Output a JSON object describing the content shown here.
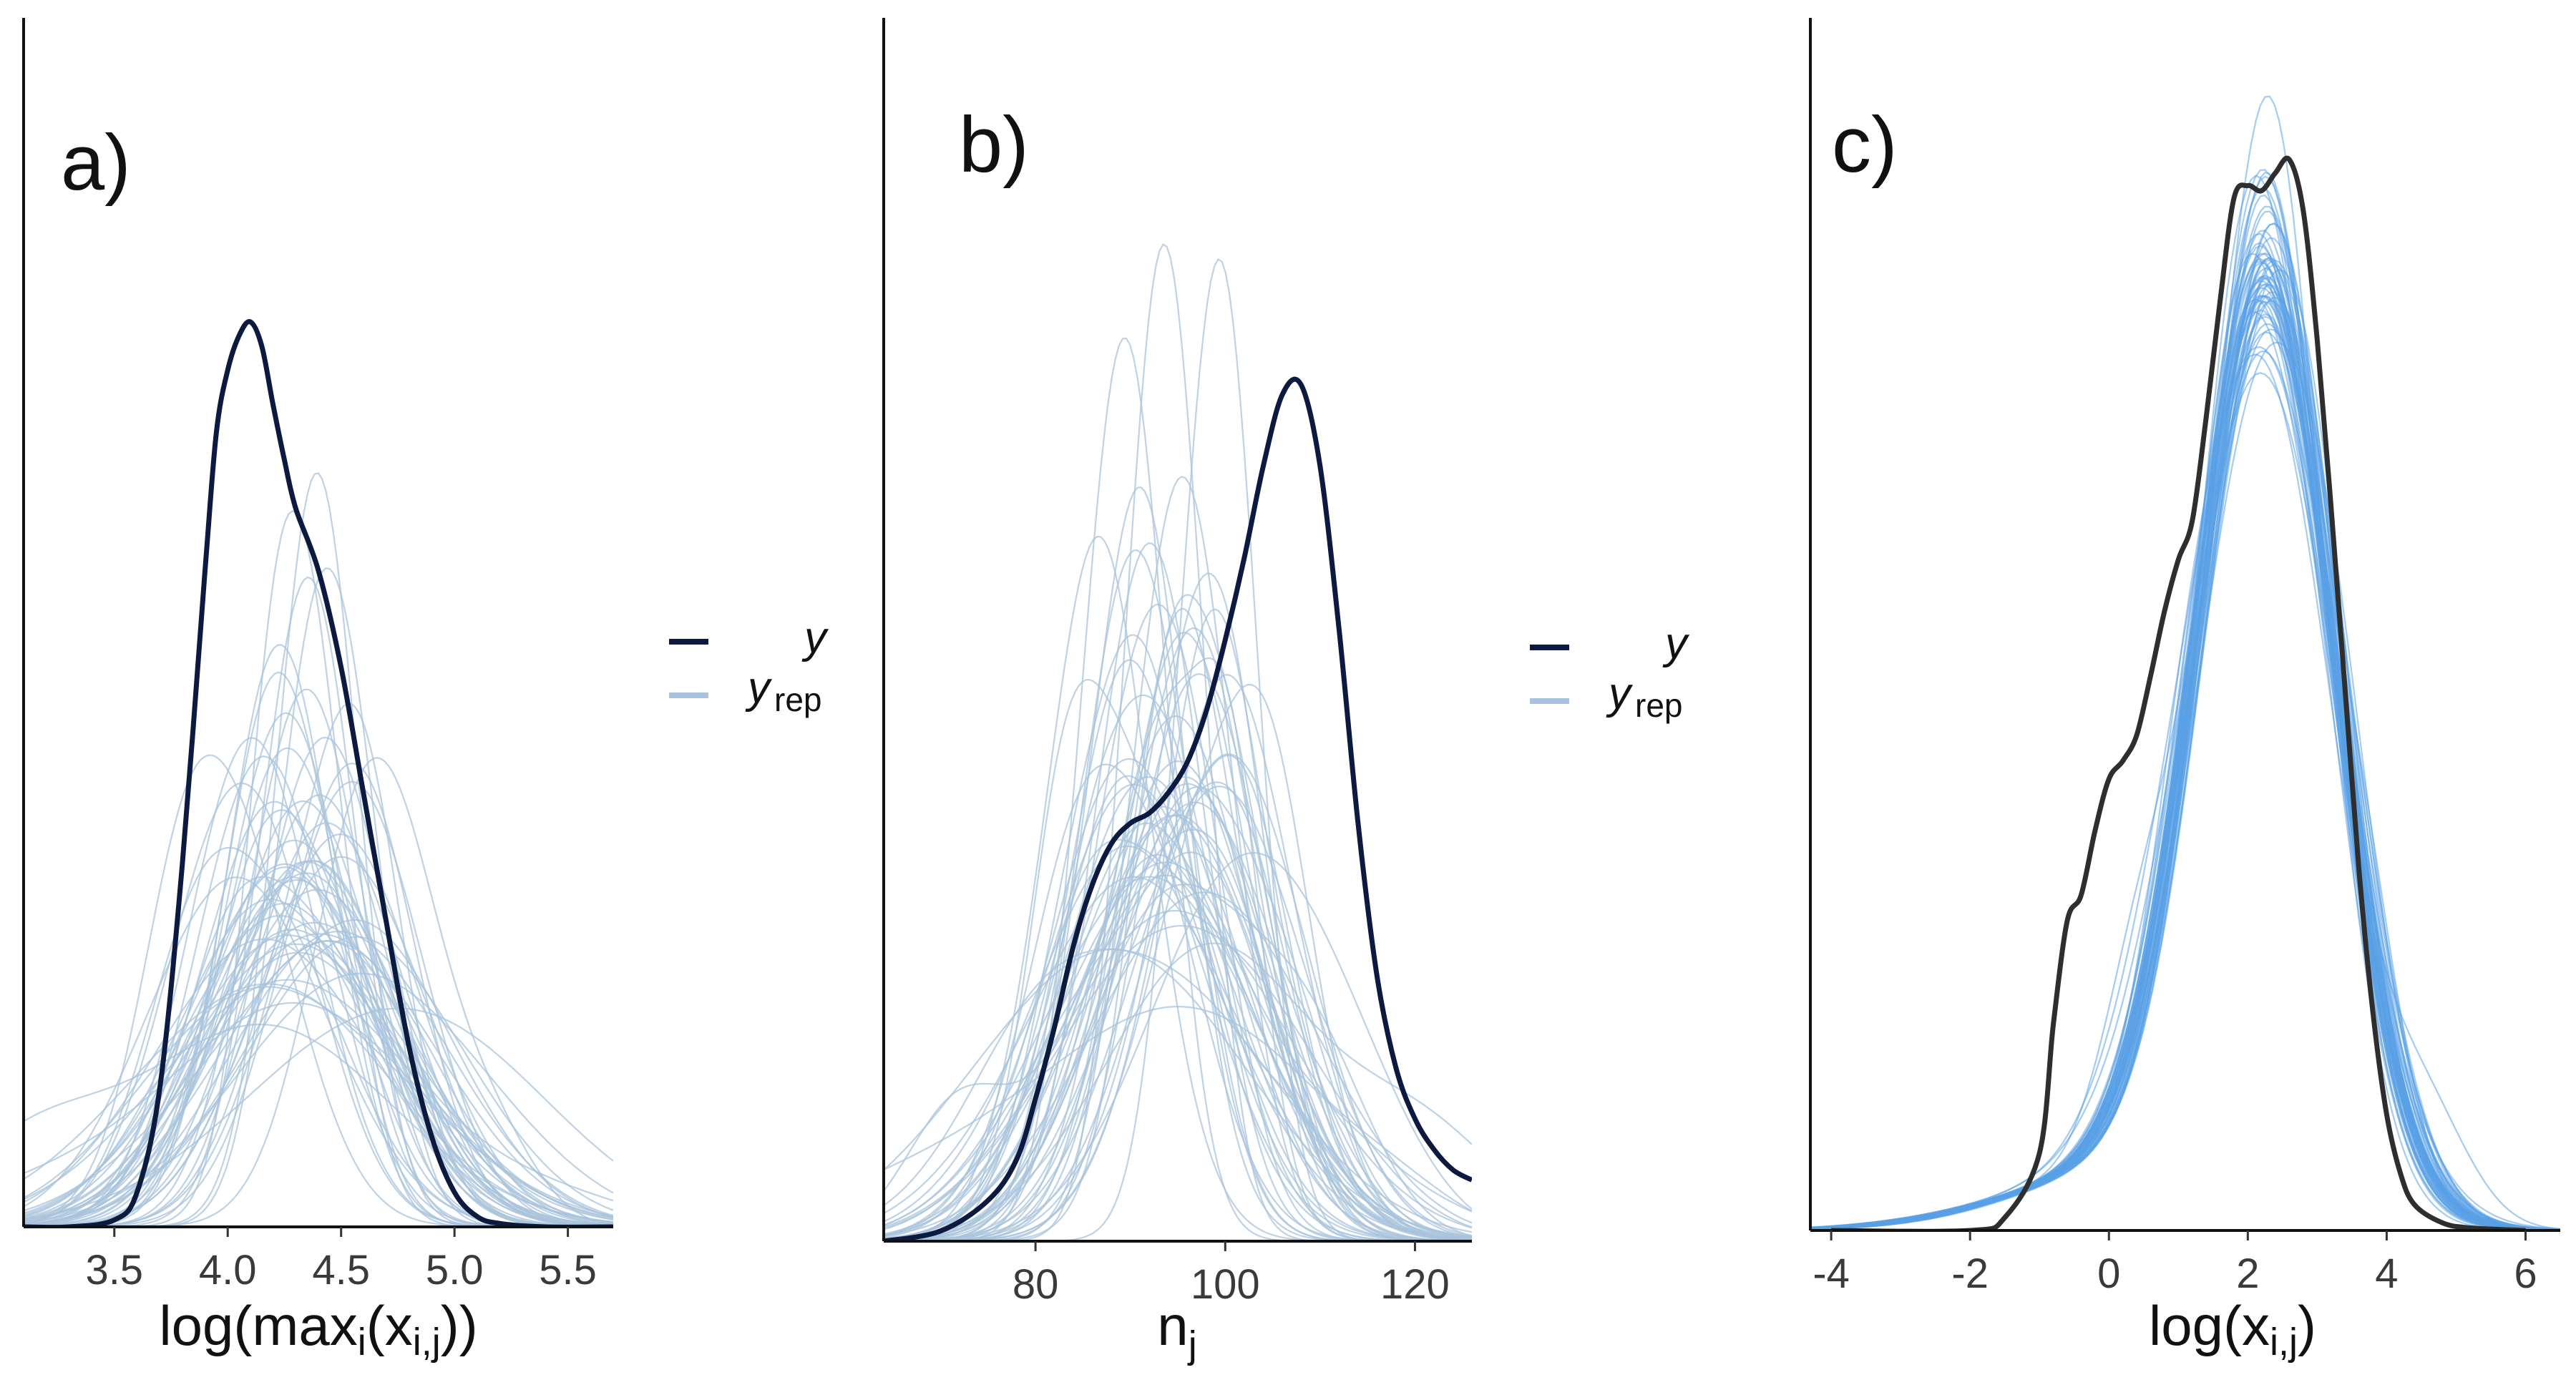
{
  "chart_data": [
    {
      "type": "line",
      "panel_label": "a)",
      "title": "",
      "xlabel_main": "log(max",
      "xlabel_sub": "i",
      "xlabel_mid": "(x",
      "xlabel_sub2": "i,j",
      "xlabel_end": "))",
      "ylabel": "",
      "xlim": [
        3.1,
        5.7
      ],
      "ylim": [
        0,
        3.5
      ],
      "ticks": [
        {
          "value": 3.5,
          "label": "3.5"
        },
        {
          "value": 4.0,
          "label": "4.0"
        },
        {
          "value": 4.5,
          "label": "4.5"
        },
        {
          "value": 5.0,
          "label": "5.0"
        },
        {
          "value": 5.5,
          "label": "5.5"
        }
      ],
      "observed": {
        "name": "y",
        "color": "#0b1a3e",
        "x": [
          3.1,
          3.3,
          3.5,
          3.6,
          3.7,
          3.8,
          3.9,
          3.95,
          4.0,
          4.05,
          4.1,
          4.15,
          4.2,
          4.25,
          4.3,
          4.4,
          4.5,
          4.6,
          4.7,
          4.8,
          4.9,
          5.0,
          5.1,
          5.2,
          5.4,
          5.7
        ],
        "y": [
          0.0,
          0.0,
          0.02,
          0.1,
          0.4,
          1.05,
          1.9,
          2.3,
          2.48,
          2.58,
          2.62,
          2.55,
          2.38,
          2.22,
          2.08,
          1.9,
          1.62,
          1.25,
          0.88,
          0.52,
          0.26,
          0.1,
          0.03,
          0.01,
          0.0,
          0.0
        ]
      },
      "replicated": {
        "name": "yrep",
        "color": "#a8c3db",
        "count": 60,
        "mean_center": 4.35,
        "center_sd": 0.14,
        "mean_sd": 0.38,
        "sd_spread": 0.12,
        "seed": 11
      },
      "legend": "right"
    },
    {
      "type": "line",
      "panel_label": "b)",
      "title": "",
      "xlabel_main": "n",
      "xlabel_sub": "j",
      "ylabel": "",
      "xlim": [
        64,
        126
      ],
      "ylim": [
        0,
        0.12
      ],
      "ticks": [
        {
          "value": 80,
          "label": "80"
        },
        {
          "value": 100,
          "label": "100"
        },
        {
          "value": 120,
          "label": "120"
        }
      ],
      "observed": {
        "name": "y",
        "color": "#0b1a3e",
        "x": [
          64,
          70,
          75,
          78,
          80,
          82,
          84,
          86,
          88,
          90,
          92,
          94,
          96,
          98,
          100,
          102,
          104,
          106,
          108,
          110,
          112,
          114,
          116,
          118,
          120,
          122,
          124,
          126
        ],
        "y": [
          0.0,
          0.001,
          0.004,
          0.008,
          0.014,
          0.021,
          0.029,
          0.035,
          0.039,
          0.041,
          0.042,
          0.044,
          0.047,
          0.052,
          0.059,
          0.067,
          0.076,
          0.083,
          0.084,
          0.076,
          0.06,
          0.041,
          0.026,
          0.017,
          0.012,
          0.009,
          0.007,
          0.006
        ]
      },
      "replicated": {
        "name": "yrep",
        "color": "#a8c3db",
        "count": 60,
        "mean_center": 94,
        "center_sd": 3.5,
        "mean_sd": 8.5,
        "sd_spread": 2.5,
        "seed": 23
      },
      "legend": "right"
    },
    {
      "type": "line",
      "panel_label": "c)",
      "title": "",
      "xlabel_main": "log(x",
      "xlabel_sub": "i,j",
      "xlabel_end": ")",
      "ylabel": "",
      "xlim": [
        -4.3,
        6.5
      ],
      "ylim": [
        0,
        0.47
      ],
      "ticks": [
        {
          "value": -4,
          "label": "-4"
        },
        {
          "value": -2,
          "label": "-2"
        },
        {
          "value": 0,
          "label": "0"
        },
        {
          "value": 2,
          "label": "2"
        },
        {
          "value": 4,
          "label": "4"
        },
        {
          "value": 6,
          "label": "6"
        }
      ],
      "observed": {
        "name": "y",
        "color": "#2e2e2e",
        "x": [
          -4.0,
          -2.0,
          -1.5,
          -1.0,
          -0.8,
          -0.6,
          -0.4,
          -0.2,
          0.0,
          0.2,
          0.4,
          0.6,
          0.8,
          1.0,
          1.2,
          1.4,
          1.6,
          1.8,
          2.0,
          2.2,
          2.4,
          2.6,
          2.8,
          3.0,
          3.2,
          3.4,
          3.6,
          3.8,
          4.0,
          4.2,
          4.4,
          4.8,
          5.2,
          6.0
        ],
        "y": [
          0.0,
          0.0,
          0.005,
          0.03,
          0.08,
          0.12,
          0.13,
          0.155,
          0.175,
          0.182,
          0.192,
          0.215,
          0.24,
          0.26,
          0.275,
          0.315,
          0.36,
          0.4,
          0.405,
          0.403,
          0.41,
          0.415,
          0.395,
          0.345,
          0.28,
          0.21,
          0.14,
          0.085,
          0.045,
          0.022,
          0.01,
          0.003,
          0.001,
          0.0
        ]
      },
      "replicated": {
        "name": "yrep",
        "color": "#5aa0e6",
        "count": 60,
        "mean_center": 2.28,
        "center_sd": 0.05,
        "mean_sd": 0.98,
        "sd_spread": 0.04,
        "skew_tail": 1.9,
        "seed": 37
      },
      "legend": "none"
    }
  ],
  "legend": {
    "y_label": "y",
    "yrep_label": "y",
    "yrep_sub": "rep"
  }
}
